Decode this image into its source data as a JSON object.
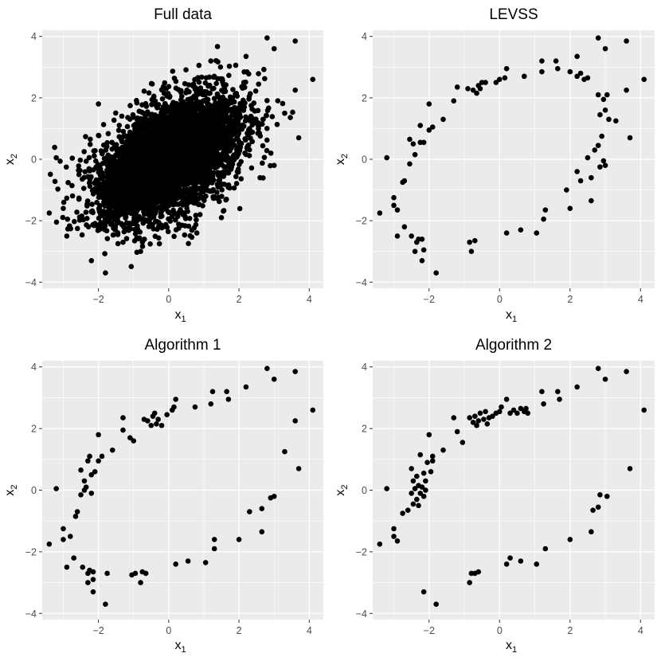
{
  "chart_data": [
    {
      "type": "scatter",
      "title": "Full data",
      "xlabel": "x",
      "xlabel_sub": "1",
      "ylabel": "x",
      "ylabel_sub": "2",
      "xlim": [
        -3.6,
        4.4
      ],
      "ylim": [
        -4.2,
        4.2
      ],
      "xticks": [
        -2,
        0,
        2,
        4
      ],
      "yticks": [
        -4,
        -2,
        0,
        2,
        4
      ],
      "xtick_labels": [
        "−2",
        "0",
        "2",
        "4"
      ],
      "ytick_labels": [
        "−4",
        "−2",
        "0",
        "2",
        "4"
      ],
      "grid": true,
      "simulated_cloud": {
        "n": 5000,
        "mean": [
          0,
          0
        ],
        "sd": [
          1,
          1
        ],
        "correlation": 0.5
      },
      "points": [
        [
          2.8,
          3.95
        ],
        [
          3.0,
          3.6
        ],
        [
          3.6,
          3.85
        ],
        [
          4.1,
          2.6
        ],
        [
          3.6,
          2.25
        ],
        [
          3.7,
          0.7
        ],
        [
          -3.2,
          0.05
        ],
        [
          -3.4,
          -1.75
        ],
        [
          -3.0,
          -1.6
        ],
        [
          -2.9,
          -2.5
        ],
        [
          -2.2,
          -3.3
        ],
        [
          -1.8,
          -3.7
        ],
        [
          -0.8,
          -3.0
        ],
        [
          3.0,
          -0.2
        ],
        [
          1.2,
          3.2
        ],
        [
          2.2,
          3.35
        ],
        [
          -2.0,
          1.8
        ],
        [
          0.8,
          -2.4
        ],
        [
          2.6,
          -0.6
        ],
        [
          3.3,
          1.5
        ],
        [
          1.5,
          -1.9
        ],
        [
          -1.3,
          -2.7
        ]
      ]
    },
    {
      "type": "scatter",
      "title": "LEVSS",
      "xlabel": "x",
      "xlabel_sub": "1",
      "ylabel": "x",
      "ylabel_sub": "2",
      "xlim": [
        -3.6,
        4.4
      ],
      "ylim": [
        -4.2,
        4.2
      ],
      "xticks": [
        -2,
        0,
        2,
        4
      ],
      "yticks": [
        -4,
        -2,
        0,
        2,
        4
      ],
      "xtick_labels": [
        "−2",
        "0",
        "2",
        "4"
      ],
      "ytick_labels": [
        "−4",
        "−2",
        "0",
        "2",
        "4"
      ],
      "grid": true,
      "points": [
        [
          -3.4,
          -1.75
        ],
        [
          -3.2,
          0.05
        ],
        [
          -3.0,
          -1.25
        ],
        [
          -3.0,
          -1.5
        ],
        [
          -2.9,
          -1.65
        ],
        [
          -2.7,
          -2.2
        ],
        [
          -2.9,
          -2.5
        ],
        [
          -2.5,
          -2.5
        ],
        [
          -2.35,
          -2.7
        ],
        [
          -2.3,
          -2.6
        ],
        [
          -2.2,
          -2.6
        ],
        [
          -2.4,
          -3.0
        ],
        [
          -2.2,
          -3.3
        ],
        [
          -2.15,
          -2.95
        ],
        [
          -1.8,
          -3.7
        ],
        [
          -2.7,
          -0.7
        ],
        [
          -2.75,
          -0.75
        ],
        [
          -2.55,
          -0.15
        ],
        [
          -2.4,
          0.15
        ],
        [
          -2.55,
          0.65
        ],
        [
          -2.45,
          0.5
        ],
        [
          -2.25,
          0.55
        ],
        [
          -2.15,
          0.55
        ],
        [
          -2.25,
          1.1
        ],
        [
          -2.0,
          0.95
        ],
        [
          -1.9,
          1.05
        ],
        [
          -1.6,
          1.3
        ],
        [
          -2.0,
          1.8
        ],
        [
          -1.3,
          1.9
        ],
        [
          -1.2,
          2.35
        ],
        [
          -0.9,
          2.3
        ],
        [
          -0.75,
          2.25
        ],
        [
          -0.65,
          2.15
        ],
        [
          -0.6,
          2.4
        ],
        [
          -0.55,
          2.3
        ],
        [
          -0.5,
          2.5
        ],
        [
          -0.4,
          2.5
        ],
        [
          -0.1,
          2.5
        ],
        [
          0.0,
          2.6
        ],
        [
          0.15,
          2.65
        ],
        [
          0.2,
          2.95
        ],
        [
          0.7,
          2.7
        ],
        [
          1.2,
          3.2
        ],
        [
          1.2,
          2.85
        ],
        [
          1.6,
          3.2
        ],
        [
          1.65,
          2.95
        ],
        [
          2.0,
          2.85
        ],
        [
          2.2,
          3.35
        ],
        [
          2.2,
          2.7
        ],
        [
          2.3,
          2.8
        ],
        [
          2.5,
          2.65
        ],
        [
          2.4,
          2.6
        ],
        [
          2.8,
          3.95
        ],
        [
          3.0,
          3.6
        ],
        [
          3.6,
          3.85
        ],
        [
          3.6,
          2.25
        ],
        [
          4.1,
          2.6
        ],
        [
          2.8,
          2.1
        ],
        [
          2.95,
          1.95
        ],
        [
          3.05,
          2.1
        ],
        [
          3.0,
          1.6
        ],
        [
          2.85,
          1.45
        ],
        [
          3.1,
          1.3
        ],
        [
          3.3,
          1.25
        ],
        [
          3.7,
          0.7
        ],
        [
          2.9,
          0.75
        ],
        [
          2.8,
          0.45
        ],
        [
          2.7,
          0.3
        ],
        [
          2.95,
          -0.05
        ],
        [
          3.0,
          -0.2
        ],
        [
          2.85,
          -0.25
        ],
        [
          2.6,
          -0.6
        ],
        [
          2.5,
          0.05
        ],
        [
          2.2,
          -0.4
        ],
        [
          2.3,
          -0.7
        ],
        [
          2.6,
          -1.35
        ],
        [
          1.9,
          -1.0
        ],
        [
          2.0,
          -1.6
        ],
        [
          1.3,
          -1.65
        ],
        [
          1.25,
          -1.95
        ],
        [
          1.05,
          -2.4
        ],
        [
          0.6,
          -2.3
        ],
        [
          0.2,
          -2.4
        ],
        [
          -0.8,
          -3.0
        ],
        [
          -0.85,
          -2.7
        ],
        [
          -0.7,
          -2.65
        ]
      ]
    },
    {
      "type": "scatter",
      "title": "Algorithm 1",
      "xlabel": "x",
      "xlabel_sub": "1",
      "ylabel": "x",
      "ylabel_sub": "2",
      "xlim": [
        -3.6,
        4.4
      ],
      "ylim": [
        -4.2,
        4.2
      ],
      "xticks": [
        -2,
        0,
        2,
        4
      ],
      "yticks": [
        -4,
        -2,
        0,
        2,
        4
      ],
      "xtick_labels": [
        "−2",
        "0",
        "2",
        "4"
      ],
      "ytick_labels": [
        "−4",
        "−2",
        "0",
        "2",
        "4"
      ],
      "grid": true,
      "points": [
        [
          -3.4,
          -1.75
        ],
        [
          -3.2,
          0.05
        ],
        [
          -3.0,
          -1.25
        ],
        [
          -3.0,
          -1.6
        ],
        [
          -2.9,
          -2.5
        ],
        [
          -2.8,
          -1.5
        ],
        [
          -2.7,
          -2.2
        ],
        [
          -2.65,
          -0.85
        ],
        [
          -2.6,
          -0.7
        ],
        [
          -2.5,
          -0.15
        ],
        [
          -2.5,
          0.65
        ],
        [
          -2.4,
          0.0
        ],
        [
          -2.45,
          -2.5
        ],
        [
          -2.4,
          0.3
        ],
        [
          -2.35,
          0.1
        ],
        [
          -2.3,
          0.95
        ],
        [
          -2.25,
          1.1
        ],
        [
          -2.2,
          0.5
        ],
        [
          -2.1,
          0.6
        ],
        [
          -2.2,
          -0.1
        ],
        [
          -2.3,
          -2.7
        ],
        [
          -2.25,
          -2.6
        ],
        [
          -2.15,
          -2.65
        ],
        [
          -2.3,
          -3.0
        ],
        [
          -2.15,
          -3.3
        ],
        [
          -2.15,
          -2.9
        ],
        [
          -2.0,
          0.95
        ],
        [
          -2.0,
          1.8
        ],
        [
          -1.9,
          1.1
        ],
        [
          -1.75,
          -2.7
        ],
        [
          -1.8,
          -3.7
        ],
        [
          -1.6,
          1.3
        ],
        [
          -1.3,
          2.35
        ],
        [
          -1.3,
          1.95
        ],
        [
          -1.1,
          1.7
        ],
        [
          -1.05,
          -2.75
        ],
        [
          -1.0,
          1.6
        ],
        [
          -0.95,
          -2.7
        ],
        [
          -0.8,
          -3.0
        ],
        [
          -0.75,
          -2.65
        ],
        [
          -0.65,
          -2.7
        ],
        [
          -0.7,
          2.3
        ],
        [
          -0.6,
          2.25
        ],
        [
          -0.5,
          2.1
        ],
        [
          -0.45,
          2.4
        ],
        [
          -0.4,
          2.5
        ],
        [
          -0.35,
          2.15
        ],
        [
          -0.3,
          2.3
        ],
        [
          -0.2,
          2.1
        ],
        [
          -0.05,
          2.45
        ],
        [
          0.1,
          2.6
        ],
        [
          0.15,
          2.7
        ],
        [
          0.2,
          2.95
        ],
        [
          0.2,
          -2.4
        ],
        [
          0.55,
          -2.3
        ],
        [
          0.75,
          2.7
        ],
        [
          1.05,
          -2.35
        ],
        [
          1.2,
          2.8
        ],
        [
          1.25,
          3.2
        ],
        [
          1.3,
          -1.6
        ],
        [
          1.3,
          -1.9
        ],
        [
          1.65,
          3.2
        ],
        [
          1.7,
          2.95
        ],
        [
          2.0,
          -1.6
        ],
        [
          2.2,
          3.35
        ],
        [
          2.3,
          -0.7
        ],
        [
          2.65,
          -0.6
        ],
        [
          2.65,
          -1.35
        ],
        [
          2.8,
          3.95
        ],
        [
          2.9,
          -0.25
        ],
        [
          3.0,
          3.6
        ],
        [
          3.0,
          -0.2
        ],
        [
          3.3,
          1.25
        ],
        [
          3.6,
          2.25
        ],
        [
          3.6,
          3.85
        ],
        [
          3.7,
          0.7
        ],
        [
          4.1,
          2.6
        ]
      ]
    },
    {
      "type": "scatter",
      "title": "Algorithm 2",
      "xlabel": "x",
      "xlabel_sub": "1",
      "ylabel": "x",
      "ylabel_sub": "2",
      "xlim": [
        -3.6,
        4.4
      ],
      "ylim": [
        -4.2,
        4.2
      ],
      "xticks": [
        -2,
        0,
        2,
        4
      ],
      "yticks": [
        -4,
        -2,
        0,
        2,
        4
      ],
      "xtick_labels": [
        "−2",
        "0",
        "2",
        "4"
      ],
      "ytick_labels": [
        "−4",
        "−2",
        "0",
        "2",
        "4"
      ],
      "grid": true,
      "points": [
        [
          -3.4,
          -1.75
        ],
        [
          -3.2,
          0.05
        ],
        [
          -3.0,
          -1.25
        ],
        [
          -3.0,
          -1.5
        ],
        [
          -2.9,
          -1.65
        ],
        [
          -2.75,
          -0.75
        ],
        [
          -2.6,
          -0.65
        ],
        [
          -2.5,
          -0.1
        ],
        [
          -2.5,
          0.7
        ],
        [
          -2.45,
          0.3
        ],
        [
          -2.45,
          -0.45
        ],
        [
          -2.4,
          0.05
        ],
        [
          -2.35,
          0.45
        ],
        [
          -2.35,
          -0.3
        ],
        [
          -2.3,
          -0.5
        ],
        [
          -2.3,
          0.15
        ],
        [
          -2.25,
          -0.1
        ],
        [
          -2.25,
          1.15
        ],
        [
          -2.2,
          0.1
        ],
        [
          -2.15,
          0.55
        ],
        [
          -2.15,
          -0.2
        ],
        [
          -2.1,
          0.3
        ],
        [
          -2.1,
          0.0
        ],
        [
          -2.05,
          0.9
        ],
        [
          -2.0,
          1.8
        ],
        [
          -1.95,
          0.6
        ],
        [
          -1.9,
          0.95
        ],
        [
          -1.9,
          1.1
        ],
        [
          -1.6,
          1.3
        ],
        [
          -1.3,
          2.35
        ],
        [
          -1.2,
          1.9
        ],
        [
          -1.05,
          1.55
        ],
        [
          -0.85,
          2.35
        ],
        [
          -0.75,
          2.2
        ],
        [
          -0.7,
          2.4
        ],
        [
          -0.65,
          2.1
        ],
        [
          -0.6,
          2.25
        ],
        [
          -0.55,
          2.5
        ],
        [
          -0.45,
          2.3
        ],
        [
          -0.4,
          2.55
        ],
        [
          -0.35,
          2.15
        ],
        [
          -0.3,
          2.35
        ],
        [
          -0.2,
          2.4
        ],
        [
          -0.1,
          2.5
        ],
        [
          0.0,
          2.55
        ],
        [
          0.05,
          2.7
        ],
        [
          0.2,
          2.95
        ],
        [
          0.3,
          2.5
        ],
        [
          0.4,
          2.6
        ],
        [
          0.5,
          2.5
        ],
        [
          0.6,
          2.65
        ],
        [
          0.7,
          2.55
        ],
        [
          0.75,
          2.65
        ],
        [
          0.8,
          2.5
        ],
        [
          1.2,
          3.2
        ],
        [
          1.25,
          2.8
        ],
        [
          1.65,
          3.2
        ],
        [
          1.7,
          2.95
        ],
        [
          2.2,
          3.35
        ],
        [
          2.8,
          3.95
        ],
        [
          3.0,
          3.6
        ],
        [
          3.6,
          3.85
        ],
        [
          4.1,
          2.6
        ],
        [
          3.7,
          0.7
        ],
        [
          3.05,
          -0.2
        ],
        [
          2.85,
          -0.15
        ],
        [
          2.8,
          -0.55
        ],
        [
          2.65,
          -0.65
        ],
        [
          2.6,
          -1.35
        ],
        [
          2.0,
          -1.6
        ],
        [
          1.3,
          -1.9
        ],
        [
          1.05,
          -2.4
        ],
        [
          0.6,
          -2.3
        ],
        [
          0.3,
          -2.2
        ],
        [
          0.2,
          -2.4
        ],
        [
          -0.6,
          -2.65
        ],
        [
          -0.7,
          -2.7
        ],
        [
          -0.8,
          -2.7
        ],
        [
          -0.85,
          -3.0
        ],
        [
          -1.8,
          -3.7
        ],
        [
          -2.15,
          -3.3
        ]
      ]
    }
  ]
}
